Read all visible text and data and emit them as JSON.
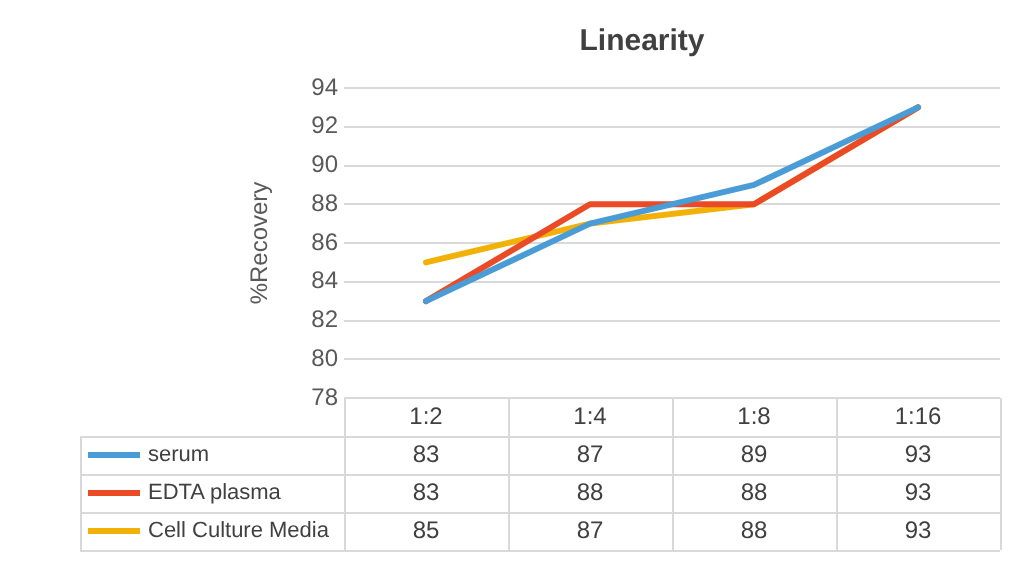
{
  "chart_data": {
    "type": "line",
    "title": "Linearity",
    "ylabel": "%Recovery",
    "categories": [
      "1:2",
      "1:4",
      "1:8",
      "1:16"
    ],
    "series": [
      {
        "name": "serum",
        "color": "#4a9cd6",
        "values": [
          83,
          87,
          89,
          93
        ]
      },
      {
        "name": "EDTA plasma",
        "color": "#ea4b26",
        "values": [
          83,
          88,
          88,
          93
        ]
      },
      {
        "name": "Cell Culture Media",
        "color": "#f2b106",
        "values": [
          85,
          87,
          88,
          93
        ]
      }
    ],
    "ylim": [
      78,
      94
    ],
    "yticks": [
      78,
      80,
      82,
      84,
      86,
      88,
      90,
      92,
      94
    ],
    "grid": "y",
    "legend": "bottom",
    "data_labels": true,
    "marker": "none",
    "line_style": "solid"
  }
}
